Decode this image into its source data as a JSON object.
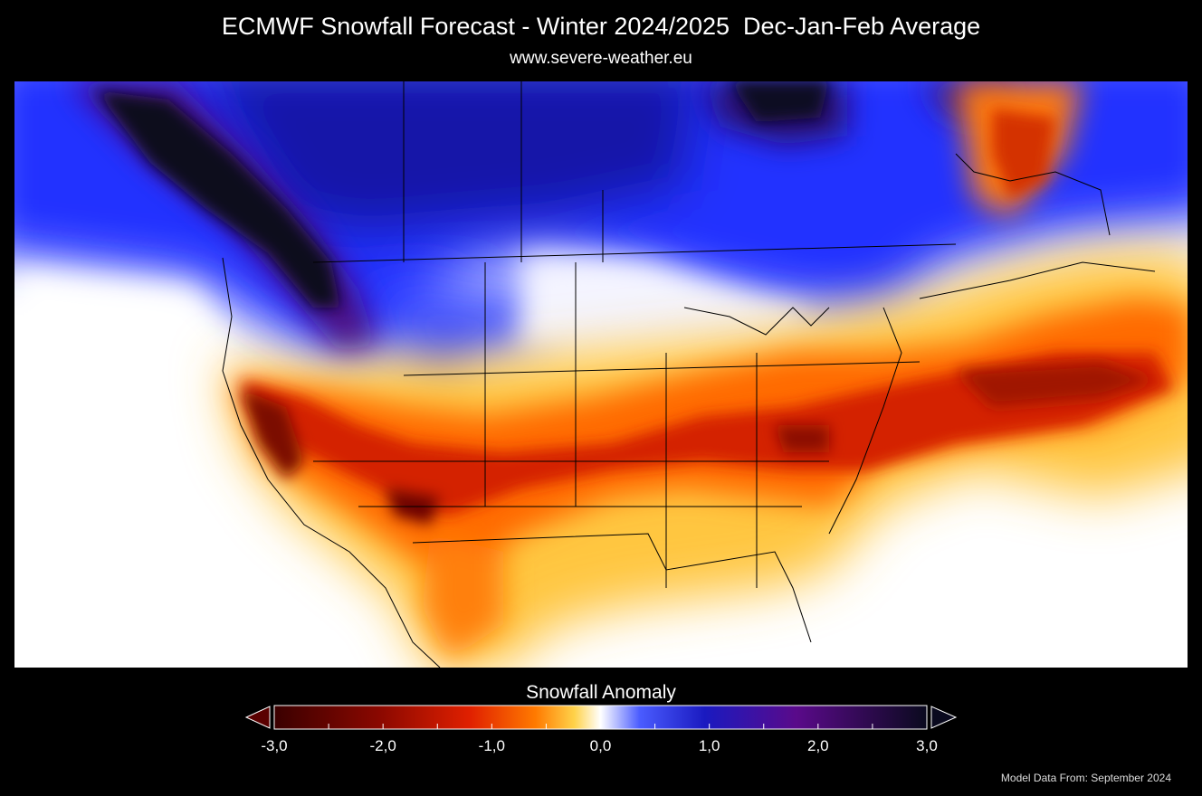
{
  "header": {
    "title": "ECMWF Snowfall Forecast - Winter 2024/2025  Dec-Jan-Feb Average",
    "subtitle": "www.severe-weather.eu"
  },
  "legend": {
    "title": "Snowfall Anomaly",
    "min": -3.0,
    "max": 3.0,
    "tick_labels": [
      "-3,0",
      "-2,0",
      "-1,0",
      "0,0",
      "1,0",
      "2,0",
      "3,0"
    ],
    "colors": {
      "strong_negative": "#3a0000",
      "negative": "#c01000",
      "mild_negative": "#ff6a00",
      "slight_negative": "#ffe070",
      "neutral": "#ffffff",
      "slight_positive": "#2a3cff",
      "positive": "#1a1ab0",
      "strong_positive": "#5a0a8a",
      "extreme_positive": "#0a0a1e"
    }
  },
  "footer": {
    "credit": "Model Data From: September 2024"
  }
}
